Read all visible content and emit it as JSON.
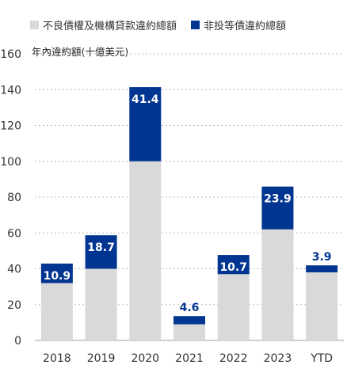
{
  "chart_data": {
    "type": "bar",
    "stacked": true,
    "title": "",
    "xlabel": "",
    "ylabel": "年內違約額(十億美元)",
    "ylim": [
      0,
      160
    ],
    "yticks": [
      0,
      20,
      40,
      60,
      80,
      100,
      120,
      140,
      160
    ],
    "grid": true,
    "legend_position": "top",
    "categories": [
      "2018",
      "2019",
      "2020",
      "2021",
      "2022",
      "2023",
      "YTD"
    ],
    "series": [
      {
        "name": "不良債權及機構貸款違約總額",
        "color": "#d9d9d9",
        "values": [
          32,
          40,
          100,
          9,
          37,
          62,
          38
        ],
        "labeled": false
      },
      {
        "name": "非投等債違約總額",
        "color": "#003591",
        "values": [
          10.9,
          18.7,
          41.4,
          4.6,
          10.7,
          23.9,
          3.9
        ],
        "labeled": true
      }
    ]
  }
}
